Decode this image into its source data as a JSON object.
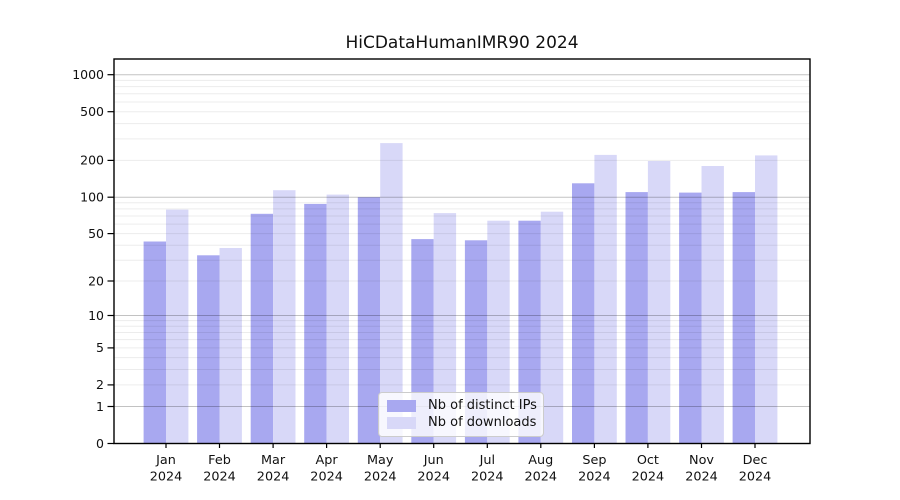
{
  "title": "HiCDataHumanIMR90 2024",
  "chart_data": {
    "type": "bar",
    "title": "HiCDataHumanIMR90 2024",
    "categories": [
      "Jan 2024",
      "Feb 2024",
      "Mar 2024",
      "Apr 2024",
      "May 2024",
      "Jun 2024",
      "Jul 2024",
      "Aug 2024",
      "Sep 2024",
      "Oct 2024",
      "Nov 2024",
      "Dec 2024"
    ],
    "series": [
      {
        "name": "Nb of distinct IPs",
        "color": "#a8a8f0",
        "values": [
          43,
          33,
          73,
          88,
          100,
          45,
          44,
          64,
          130,
          110,
          109,
          110
        ]
      },
      {
        "name": "Nb of downloads",
        "color": "#d8d8f8",
        "values": [
          79,
          38,
          114,
          105,
          277,
          74,
          64,
          76,
          222,
          198,
          180,
          220
        ]
      }
    ],
    "xlabel": "",
    "ylabel": "",
    "y_scale": "log1p",
    "y_ticks": [
      1000,
      500,
      200,
      100,
      50,
      20,
      10,
      5,
      2,
      1,
      0
    ],
    "ylim": [
      0,
      1200
    ],
    "grid": true,
    "legend_position": "lower center",
    "grid_major_color": "#c2c2c2",
    "grid_minor_color": "#ececec",
    "axis_color": "#000000"
  }
}
